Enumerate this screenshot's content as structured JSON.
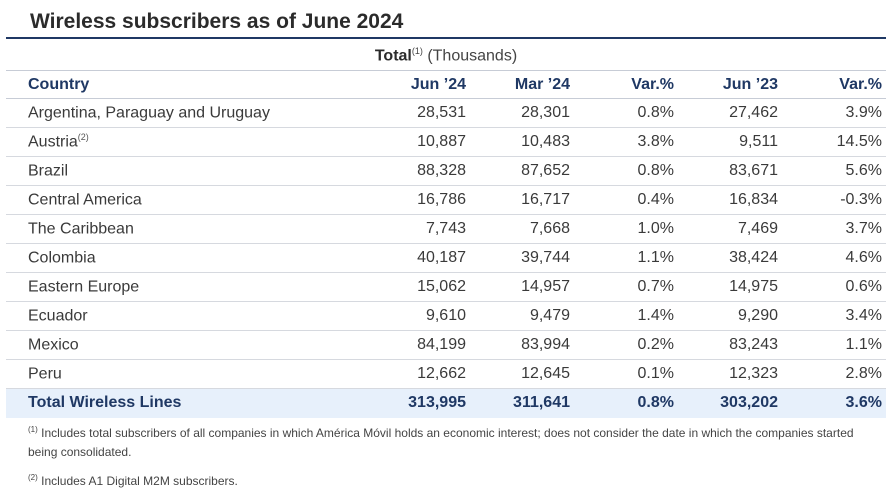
{
  "title": "Wireless subscribers as of June 2024",
  "subtitle": {
    "bold": "Total",
    "sup": "(1)",
    "rest": " (Thousands)"
  },
  "table": {
    "headers": [
      "Country",
      "Jun ’24",
      "Mar ’24",
      "Var.%",
      "Jun ’23",
      "Var.%"
    ],
    "rows": [
      {
        "country": "Argentina, Paraguay and Uruguay",
        "sup": "",
        "jun24": "28,531",
        "mar24": "28,301",
        "var1": "0.8%",
        "jun23": "27,462",
        "var2": "3.9%"
      },
      {
        "country": "Austria",
        "sup": "(2)",
        "jun24": "10,887",
        "mar24": "10,483",
        "var1": "3.8%",
        "jun23": "9,511",
        "var2": "14.5%"
      },
      {
        "country": "Brazil",
        "sup": "",
        "jun24": "88,328",
        "mar24": "87,652",
        "var1": "0.8%",
        "jun23": "83,671",
        "var2": "5.6%"
      },
      {
        "country": "Central America",
        "sup": "",
        "jun24": "16,786",
        "mar24": "16,717",
        "var1": "0.4%",
        "jun23": "16,834",
        "var2": "-0.3%"
      },
      {
        "country": "The Caribbean",
        "sup": "",
        "jun24": "7,743",
        "mar24": "7,668",
        "var1": "1.0%",
        "jun23": "7,469",
        "var2": "3.7%"
      },
      {
        "country": "Colombia",
        "sup": "",
        "jun24": "40,187",
        "mar24": "39,744",
        "var1": "1.1%",
        "jun23": "38,424",
        "var2": "4.6%"
      },
      {
        "country": "Eastern Europe",
        "sup": "",
        "jun24": "15,062",
        "mar24": "14,957",
        "var1": "0.7%",
        "jun23": "14,975",
        "var2": "0.6%"
      },
      {
        "country": "Ecuador",
        "sup": "",
        "jun24": "9,610",
        "mar24": "9,479",
        "var1": "1.4%",
        "jun23": "9,290",
        "var2": "3.4%"
      },
      {
        "country": "Mexico",
        "sup": "",
        "jun24": "84,199",
        "mar24": "83,994",
        "var1": "0.2%",
        "jun23": "83,243",
        "var2": "1.1%"
      },
      {
        "country": "Peru",
        "sup": "",
        "jun24": "12,662",
        "mar24": "12,645",
        "var1": "0.1%",
        "jun23": "12,323",
        "var2": "2.8%"
      }
    ],
    "total": {
      "country": "Total Wireless Lines",
      "jun24": "313,995",
      "mar24": "311,641",
      "var1": "0.8%",
      "jun23": "303,202",
      "var2": "3.6%"
    }
  },
  "notes": [
    {
      "sup": "(1)",
      "text": " Includes total subscribers of all companies in which América Móvil holds an economic interest; does not consider the date in which the companies started being consolidated."
    },
    {
      "sup": "(2)",
      "text": " Includes A1 Digital M2M subscribers."
    }
  ]
}
